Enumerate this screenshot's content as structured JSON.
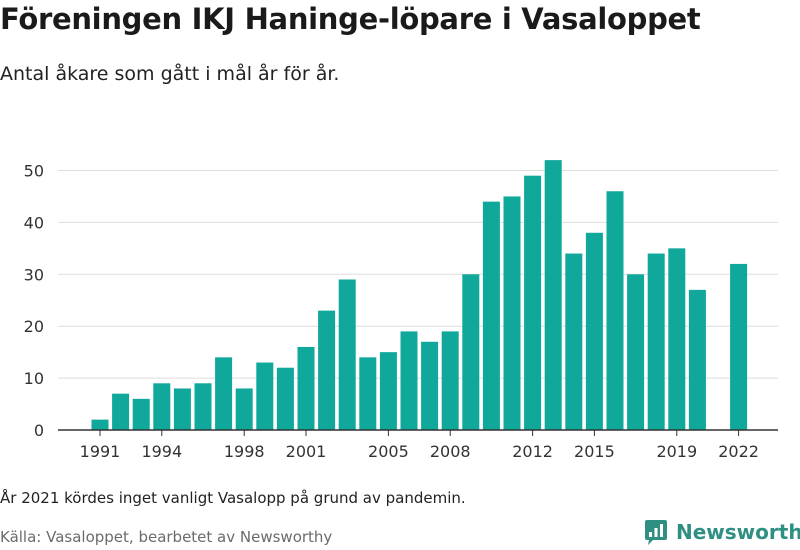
{
  "header": {
    "title": "Föreningen IKJ Haninge-löpare i Vasaloppet",
    "subtitle": "Antal åkare som gått i mål år för år."
  },
  "footer": {
    "note": "År 2021 kördes inget vanligt Vasalopp på grund av pandemin.",
    "source": "Källa: Vasaloppet, bearbetet av Newsworthy",
    "brand": "Newsworthy"
  },
  "colors": {
    "bar": "#0fa89b",
    "grid": "#dddddd",
    "brand": "#2f8f82"
  },
  "chart_data": {
    "type": "bar",
    "title": "Föreningen IKJ Haninge-löpare i Vasaloppet",
    "subtitle": "Antal åkare som gått i mål år för år.",
    "xlabel": "",
    "ylabel": "",
    "ylim": [
      0,
      55
    ],
    "yticks": [
      0,
      10,
      20,
      30,
      40,
      50
    ],
    "xtick_labels": [
      1991,
      1994,
      1998,
      2001,
      2005,
      2008,
      2012,
      2015,
      2019,
      2022
    ],
    "grid": true,
    "categories": [
      1991,
      1992,
      1993,
      1994,
      1995,
      1996,
      1997,
      1998,
      1999,
      2000,
      2001,
      2002,
      2003,
      2004,
      2005,
      2006,
      2007,
      2008,
      2009,
      2010,
      2011,
      2012,
      2013,
      2014,
      2015,
      2016,
      2017,
      2018,
      2019,
      2020,
      2021,
      2022
    ],
    "values": [
      2,
      7,
      6,
      9,
      8,
      9,
      14,
      8,
      13,
      12,
      16,
      23,
      29,
      14,
      15,
      19,
      17,
      19,
      30,
      44,
      45,
      49,
      52,
      34,
      38,
      46,
      30,
      34,
      35,
      27,
      null,
      32
    ]
  }
}
